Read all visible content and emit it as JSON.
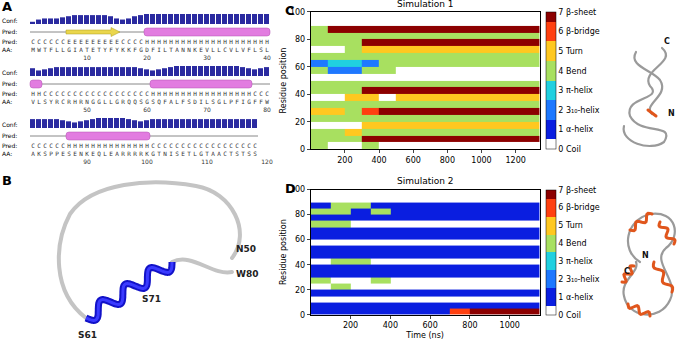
{
  "panel_a": {
    "label": "A",
    "row_labels": {
      "conf": "Conf:",
      "pred": "Pred:",
      "aa": "AA:"
    },
    "rows": [
      {
        "conf": [
          2,
          4,
          5,
          5,
          5,
          6,
          7,
          8,
          8,
          8,
          8,
          8,
          8,
          7,
          5,
          4,
          5,
          7,
          8,
          9,
          9,
          9,
          9,
          9,
          9,
          9,
          9,
          9,
          9,
          9,
          9,
          9,
          9,
          9,
          9,
          9,
          9,
          9,
          9,
          9
        ],
        "pred": "CCCCCCEEEEEEEEECCCCHHHHHHHHHHHHHHHHHHHHH",
        "aa": "MWTFLLGIATETYFYKKFGDFILTANNKEVLLCVLVFLSL",
        "ticks": [
          10,
          20,
          30,
          40
        ]
      },
      {
        "conf": [
          7,
          5,
          6,
          7,
          8,
          8,
          8,
          8,
          8,
          8,
          8,
          8,
          8,
          8,
          8,
          8,
          8,
          8,
          7,
          6,
          5,
          6,
          7,
          8,
          9,
          9,
          9,
          9,
          9,
          9,
          9,
          9,
          9,
          9,
          9,
          8,
          7,
          6,
          7,
          8
        ],
        "pred": "HHCCCCCCCCCCCCCCCCCCHHHHHHHHHHHHHHHHHCCC",
        "aa": "VLSYRCRHRNGGLLGRQQSGSQFALFSDILSGLPFIGFFW",
        "ticks": [
          50,
          60,
          70,
          80
        ]
      },
      {
        "conf": [
          8,
          8,
          8,
          8,
          8,
          7,
          6,
          5,
          6,
          7,
          8,
          9,
          9,
          9,
          9,
          9,
          8,
          7,
          6,
          7,
          8,
          8,
          8,
          8,
          8,
          8,
          8,
          8,
          8,
          8,
          8,
          8,
          8,
          8,
          8,
          8,
          8,
          8
        ],
        "pred": "CCCCCCHHHHHHHHHHHHHHCCCCCCCCCCCCCCCCCC",
        "aa": "AKSPPESENKEQLEARRRRKGTNISETLGTAACTSTSS",
        "ticks": [
          90,
          100,
          110,
          120
        ]
      }
    ]
  },
  "panel_b": {
    "label": "B",
    "labels": {
      "n50": "N50",
      "w80": "W80",
      "s61": "S61",
      "s71": "S71"
    }
  },
  "chart_data": [
    {
      "panel": "C",
      "type": "heatmap",
      "title": "Simulation 1",
      "ylabel": "Residue position",
      "x_bins": [
        0,
        100,
        200,
        300,
        400,
        500,
        600,
        700,
        800,
        900,
        1000,
        1100,
        1200,
        1300,
        1340
      ],
      "y_bins": [
        0,
        5,
        10,
        15,
        20,
        25,
        30,
        35,
        40,
        45,
        50,
        55,
        60,
        65,
        70,
        75,
        80,
        85,
        90,
        95,
        100
      ],
      "cells": [
        [
          4,
          0,
          0,
          4,
          0,
          0,
          0,
          0,
          0,
          0,
          0,
          0,
          0,
          0
        ],
        [
          4,
          4,
          4,
          7,
          7,
          7,
          7,
          7,
          7,
          7,
          7,
          7,
          7,
          7
        ],
        [
          4,
          4,
          5,
          4,
          4,
          4,
          4,
          4,
          4,
          4,
          4,
          4,
          4,
          4
        ],
        [
          0,
          0,
          0,
          5,
          5,
          5,
          5,
          5,
          5,
          5,
          5,
          5,
          5,
          5
        ],
        [
          4,
          4,
          4,
          4,
          4,
          4,
          4,
          4,
          4,
          4,
          4,
          4,
          4,
          4
        ],
        [
          5,
          5,
          4,
          6,
          7,
          7,
          7,
          7,
          7,
          7,
          7,
          7,
          7,
          7
        ],
        [
          4,
          4,
          4,
          4,
          4,
          4,
          4,
          4,
          4,
          4,
          4,
          4,
          4,
          4
        ],
        [
          0,
          0,
          5,
          5,
          0,
          5,
          5,
          5,
          5,
          5,
          5,
          5,
          5,
          5
        ],
        [
          4,
          4,
          4,
          7,
          7,
          7,
          7,
          7,
          7,
          7,
          7,
          7,
          7,
          7
        ],
        [
          4,
          4,
          4,
          4,
          4,
          4,
          4,
          4,
          4,
          4,
          4,
          4,
          4,
          4
        ],
        [
          0,
          0,
          0,
          0,
          0,
          0,
          0,
          0,
          0,
          0,
          0,
          0,
          0,
          0
        ],
        [
          4,
          2,
          2,
          4,
          4,
          0,
          0,
          0,
          0,
          0,
          0,
          0,
          0,
          0
        ],
        [
          2,
          3,
          3,
          2,
          4,
          4,
          4,
          4,
          4,
          4,
          4,
          4,
          4,
          4
        ],
        [
          4,
          4,
          4,
          4,
          4,
          4,
          4,
          4,
          4,
          4,
          4,
          4,
          4,
          4
        ],
        [
          0,
          0,
          4,
          5,
          5,
          5,
          5,
          5,
          5,
          5,
          5,
          5,
          5,
          5
        ],
        [
          4,
          4,
          4,
          7,
          7,
          7,
          7,
          7,
          7,
          7,
          7,
          7,
          7,
          7
        ],
        [
          4,
          4,
          4,
          4,
          4,
          4,
          4,
          4,
          4,
          4,
          4,
          4,
          4,
          4
        ],
        [
          4,
          7,
          7,
          7,
          7,
          7,
          7,
          7,
          7,
          7,
          7,
          7,
          7,
          7
        ],
        [
          0,
          0,
          0,
          0,
          0,
          0,
          0,
          0,
          0,
          0,
          0,
          0,
          0,
          0
        ],
        [
          0,
          0,
          0,
          0,
          0,
          0,
          0,
          0,
          0,
          0,
          0,
          0,
          0,
          0
        ]
      ],
      "xlim": [
        0,
        1340
      ],
      "xticks": [
        200,
        400,
        600,
        800,
        1000,
        1200
      ],
      "ylim": [
        0,
        100
      ],
      "yticks": [
        0,
        20,
        40,
        60,
        80,
        100
      ],
      "colorbar": {
        "range": [
          0,
          7
        ],
        "colors": [
          "#ffffff",
          "#0a1ee0",
          "#1e78ff",
          "#20d0e0",
          "#a8e060",
          "#ffc820",
          "#ff4010",
          "#8c0000"
        ],
        "ticks": [
          {
            "value": 0,
            "label": "0 Coil"
          },
          {
            "value": 1,
            "label": "1 α-helix"
          },
          {
            "value": 2,
            "label": "2 3₁₀-helix"
          },
          {
            "value": 3,
            "label": "3 π-helix"
          },
          {
            "value": 4,
            "label": "4 Bend"
          },
          {
            "value": 5,
            "label": "5 Turn"
          },
          {
            "value": 6,
            "label": "6 β-bridge"
          },
          {
            "value": 7,
            "label": "7 β-sheet"
          }
        ]
      },
      "structure_labels": [
        "C",
        "N"
      ]
    },
    {
      "panel": "D",
      "type": "heatmap",
      "title": "Simulation 2",
      "xlabel": "Time (ns)",
      "ylabel": "Residue position",
      "x_bins": [
        0,
        100,
        200,
        300,
        400,
        500,
        600,
        700,
        800,
        900,
        1000,
        1100,
        1150
      ],
      "y_bins": [
        0,
        5,
        10,
        15,
        20,
        25,
        30,
        35,
        40,
        45,
        50,
        55,
        60,
        65,
        70,
        75,
        80,
        85,
        90,
        95,
        100
      ],
      "cells": [
        [
          1,
          1,
          1,
          1,
          1,
          1,
          1,
          6,
          7,
          7,
          7,
          7
        ],
        [
          1,
          1,
          1,
          1,
          1,
          1,
          1,
          1,
          1,
          1,
          1,
          1
        ],
        [
          0,
          0,
          0,
          0,
          0,
          0,
          0,
          0,
          0,
          0,
          0,
          0
        ],
        [
          1,
          1,
          1,
          1,
          1,
          1,
          1,
          1,
          1,
          1,
          1,
          1
        ],
        [
          0,
          4,
          0,
          0,
          0,
          0,
          0,
          0,
          0,
          0,
          0,
          0
        ],
        [
          4,
          0,
          0,
          4,
          0,
          0,
          0,
          0,
          0,
          0,
          0,
          0
        ],
        [
          1,
          1,
          1,
          1,
          1,
          1,
          1,
          1,
          1,
          1,
          1,
          1
        ],
        [
          1,
          1,
          1,
          1,
          1,
          1,
          1,
          1,
          1,
          1,
          1,
          1
        ],
        [
          0,
          4,
          4,
          0,
          0,
          0,
          0,
          0,
          0,
          0,
          0,
          0
        ],
        [
          1,
          1,
          1,
          1,
          1,
          1,
          1,
          1,
          1,
          1,
          1,
          1
        ],
        [
          1,
          1,
          1,
          1,
          1,
          1,
          1,
          1,
          1,
          1,
          1,
          1
        ],
        [
          0,
          0,
          0,
          0,
          0,
          0,
          0,
          0,
          0,
          0,
          0,
          0
        ],
        [
          1,
          1,
          1,
          1,
          1,
          1,
          1,
          1,
          1,
          1,
          1,
          1
        ],
        [
          1,
          1,
          1,
          1,
          1,
          1,
          1,
          1,
          1,
          1,
          1,
          1
        ],
        [
          4,
          4,
          0,
          0,
          0,
          0,
          0,
          0,
          0,
          0,
          0,
          0
        ],
        [
          1,
          1,
          1,
          1,
          1,
          1,
          1,
          1,
          1,
          1,
          1,
          1
        ],
        [
          4,
          4,
          1,
          4,
          1,
          1,
          1,
          1,
          1,
          1,
          1,
          1
        ],
        [
          1,
          4,
          4,
          1,
          1,
          1,
          1,
          1,
          1,
          1,
          1,
          1
        ],
        [
          0,
          0,
          0,
          0,
          0,
          0,
          0,
          0,
          0,
          0,
          0,
          0
        ],
        [
          0,
          0,
          0,
          0,
          0,
          0,
          0,
          0,
          0,
          0,
          0,
          0
        ]
      ],
      "xlim": [
        0,
        1150
      ],
      "xticks": [
        200,
        400,
        600,
        800,
        1000
      ],
      "ylim": [
        0,
        100
      ],
      "yticks": [
        0,
        20,
        40,
        60,
        80,
        100
      ],
      "colorbar": {
        "range": [
          0,
          7
        ],
        "colors": [
          "#ffffff",
          "#0a1ee0",
          "#1e78ff",
          "#20d0e0",
          "#a8e060",
          "#ffc820",
          "#ff4010",
          "#8c0000"
        ],
        "ticks": [
          {
            "value": 0,
            "label": "0 Coil"
          },
          {
            "value": 1,
            "label": "1 α-helix"
          },
          {
            "value": 2,
            "label": "2 3₁₀-helix"
          },
          {
            "value": 3,
            "label": "3 π-helix"
          },
          {
            "value": 4,
            "label": "4 Bend"
          },
          {
            "value": 5,
            "label": "5 Turn"
          },
          {
            "value": 6,
            "label": "6 β-bridge"
          },
          {
            "value": 7,
            "label": "7 β-sheet"
          }
        ]
      },
      "structure_labels": [
        "C",
        "N"
      ]
    }
  ]
}
